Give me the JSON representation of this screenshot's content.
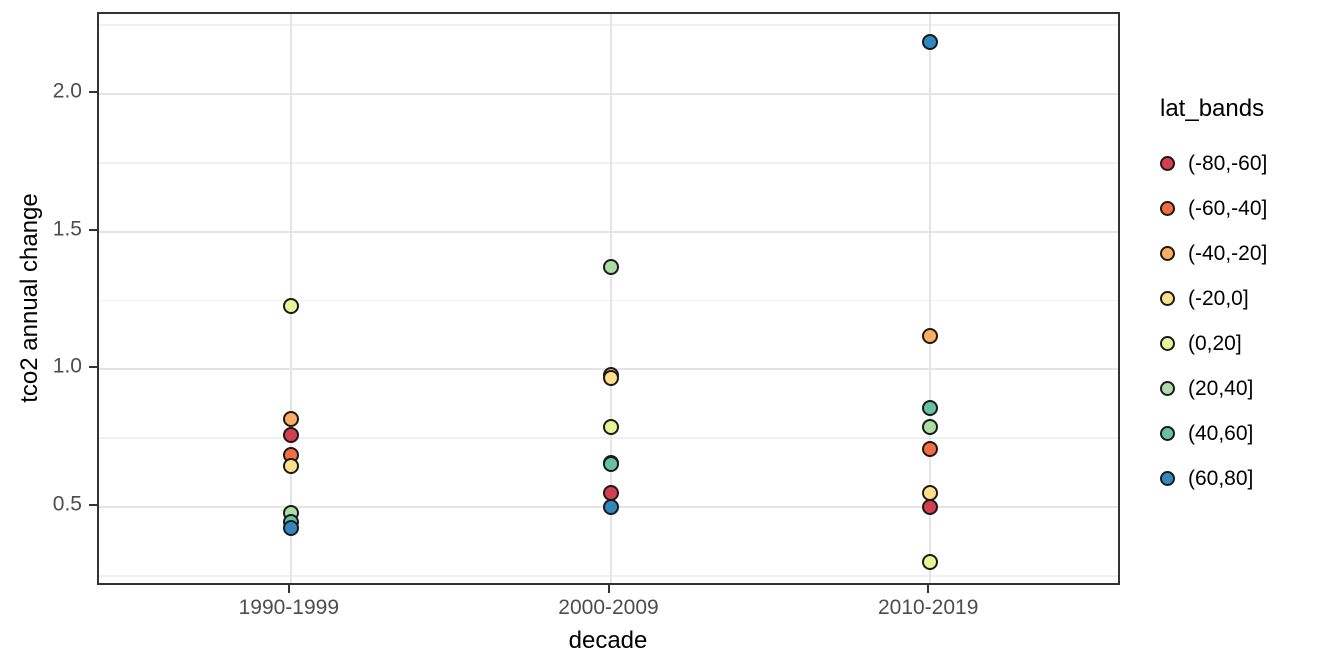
{
  "chart_data": {
    "type": "scatter",
    "title": "",
    "xlabel": "decade",
    "ylabel": "tco2 annual change",
    "legend_title": "lat_bands",
    "legend_position": "right",
    "grid": true,
    "categories": [
      "1990-1999",
      "2000-2009",
      "2010-2019"
    ],
    "y_ticks": [
      2.0,
      1.5,
      1.0,
      0.5
    ],
    "y_tick_labels": [
      "2.0",
      "1.5",
      "1.0",
      "0.5"
    ],
    "y_minor_ticks": [
      2.25,
      1.75,
      1.25,
      0.75,
      0.25
    ],
    "ylim": [
      0.21,
      2.29
    ],
    "series": [
      {
        "name": "(-80,-60]",
        "color": "#D53E4F",
        "values": [
          0.76,
          0.55,
          0.5
        ]
      },
      {
        "name": "(-60,-40]",
        "color": "#F46D43",
        "values": [
          0.69,
          0.66,
          0.71
        ]
      },
      {
        "name": "(-40,-20]",
        "color": "#FDAE61",
        "values": [
          0.82,
          0.98,
          1.12
        ]
      },
      {
        "name": "(-20,0]",
        "color": "#FEE08B",
        "values": [
          0.65,
          0.97,
          0.55
        ]
      },
      {
        "name": "(0,20]",
        "color": "#E6F598",
        "values": [
          1.23,
          0.79,
          0.3
        ]
      },
      {
        "name": "(20,40]",
        "color": "#ABDDA4",
        "values": [
          0.48,
          1.37,
          0.79
        ]
      },
      {
        "name": "(40,60]",
        "color": "#66C2A5",
        "values": [
          0.445,
          0.655,
          0.86
        ]
      },
      {
        "name": "(60,80]",
        "color": "#3288BD",
        "values": [
          0.425,
          0.5,
          2.19
        ]
      }
    ],
    "colors": {
      "grid_major": "#e4e4e4",
      "grid_minor": "#f0f0f0",
      "panel_border": "#333333",
      "point_stroke": "#1a1a1a",
      "tick_label": "#4d4d4d",
      "axis_title": "#000000"
    }
  }
}
